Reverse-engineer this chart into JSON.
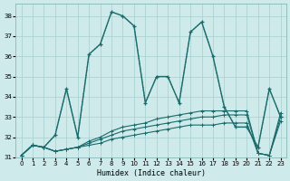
{
  "xlabel": "Humidex (Indice chaleur)",
  "xlim": [
    -0.5,
    23.5
  ],
  "ylim": [
    31.0,
    38.6
  ],
  "yticks": [
    31,
    32,
    33,
    34,
    35,
    36,
    37,
    38
  ],
  "xticks": [
    0,
    1,
    2,
    3,
    4,
    5,
    6,
    7,
    8,
    9,
    10,
    11,
    12,
    13,
    14,
    15,
    16,
    17,
    18,
    19,
    20,
    21,
    22,
    23
  ],
  "bg_color": "#ceeaea",
  "grid_color": "#a8d0d0",
  "line_color": "#1a6b6b",
  "series_solid": [
    31.1,
    31.6,
    31.5,
    32.1,
    34.4,
    32.0,
    36.1,
    36.6,
    38.2,
    38.0,
    37.5,
    33.7,
    35.0,
    35.0,
    33.7,
    37.2,
    37.7,
    36.0,
    33.5,
    32.5,
    32.5,
    31.5,
    34.4,
    33.0
  ],
  "series_dotted": [
    31.1,
    31.6,
    31.5,
    32.1,
    34.4,
    32.0,
    36.1,
    36.6,
    38.2,
    38.0,
    37.5,
    33.7,
    35.0,
    35.0,
    33.7,
    37.2,
    37.7,
    36.0,
    33.5,
    32.5,
    32.5,
    31.5,
    34.4,
    33.0
  ],
  "flat1": [
    31.1,
    31.6,
    31.5,
    31.3,
    31.4,
    31.5,
    31.6,
    31.7,
    31.9,
    32.0,
    32.1,
    32.2,
    32.3,
    32.4,
    32.5,
    32.6,
    32.6,
    32.6,
    32.7,
    32.7,
    32.7,
    31.2,
    31.1,
    32.8
  ],
  "flat2": [
    31.1,
    31.6,
    31.5,
    31.3,
    31.4,
    31.5,
    31.7,
    31.9,
    32.1,
    32.3,
    32.4,
    32.5,
    32.6,
    32.7,
    32.8,
    32.9,
    33.0,
    33.0,
    33.1,
    33.1,
    33.1,
    31.2,
    31.1,
    33.0
  ],
  "flat3": [
    31.1,
    31.6,
    31.5,
    31.3,
    31.4,
    31.5,
    31.8,
    32.0,
    32.3,
    32.5,
    32.6,
    32.7,
    32.9,
    33.0,
    33.1,
    33.2,
    33.3,
    33.3,
    33.3,
    33.3,
    33.3,
    31.2,
    31.1,
    33.2
  ]
}
